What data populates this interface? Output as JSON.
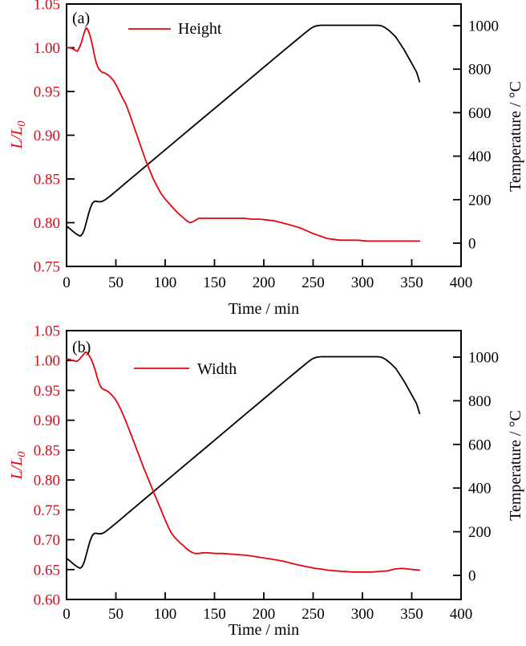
{
  "figure": {
    "background": "#ffffff",
    "colors": {
      "red": "#e30613",
      "black": "#000000"
    }
  },
  "chart_data": [
    {
      "type": "line",
      "panel_label": "(a)",
      "xlabel": "Time / min",
      "ylabel_left": {
        "main": "L/L",
        "sub": "0"
      },
      "ylabel_right": "Temperature / °C",
      "legend": {
        "label": "Height",
        "line_color": "#e30613"
      },
      "xlim": [
        0,
        400
      ],
      "xticks": {
        "values": [
          0,
          50,
          100,
          150,
          200,
          250,
          300,
          350,
          400
        ],
        "labels": [
          "0",
          "50",
          "100",
          "150",
          "200",
          "250",
          "300",
          "350",
          "400"
        ]
      },
      "ylim_left": [
        0.75,
        1.05
      ],
      "yticks_left": {
        "values": [
          0.75,
          0.8,
          0.85,
          0.9,
          0.95,
          1.0,
          1.05
        ],
        "labels": [
          "0.75",
          "0.80",
          "0.85",
          "0.90",
          "0.95",
          "1.00",
          "1.05"
        ]
      },
      "ylim_right": [
        0,
        1000
      ],
      "yticks_right": {
        "values": [
          0,
          200,
          400,
          600,
          800,
          1000
        ],
        "labels": [
          "0",
          "200",
          "400",
          "600",
          "800",
          "1000"
        ]
      },
      "grid": false,
      "legend_position": "top-inside",
      "series": [
        {
          "name": "Temperature",
          "axis": "right",
          "color": "#000000",
          "points": [
            [
              0,
              78
            ],
            [
              3,
              68
            ],
            [
              6,
              56
            ],
            [
              9,
              45
            ],
            [
              12,
              36
            ],
            [
              14,
              33
            ],
            [
              16,
              42
            ],
            [
              18,
              62
            ],
            [
              20,
              95
            ],
            [
              22,
              130
            ],
            [
              24,
              160
            ],
            [
              26,
              182
            ],
            [
              28,
              192
            ],
            [
              30,
              193
            ],
            [
              33,
              190
            ],
            [
              36,
              192
            ],
            [
              39,
              199
            ],
            [
              44,
              216
            ],
            [
              52,
              246
            ],
            [
              60,
              277
            ],
            [
              80,
              353
            ],
            [
              100,
              429
            ],
            [
              120,
              505
            ],
            [
              140,
              581
            ],
            [
              160,
              657
            ],
            [
              180,
              733
            ],
            [
              200,
              809
            ],
            [
              220,
              885
            ],
            [
              232,
              930
            ],
            [
              240,
              960
            ],
            [
              246,
              982
            ],
            [
              250,
              994
            ],
            [
              254,
              1000
            ],
            [
              258,
              1002
            ],
            [
              315,
              1002
            ],
            [
              319,
              1000
            ],
            [
              323,
              991
            ],
            [
              328,
              974
            ],
            [
              334,
              947
            ],
            [
              342,
              891
            ],
            [
              350,
              827
            ],
            [
              355,
              786
            ],
            [
              358,
              742
            ]
          ]
        },
        {
          "name": "Height",
          "axis": "left",
          "color": "#e30613",
          "points": [
            [
              0,
              1.0
            ],
            [
              3,
              1.0
            ],
            [
              6,
              0.999
            ],
            [
              9,
              0.997
            ],
            [
              11,
              0.996
            ],
            [
              13,
              1.0
            ],
            [
              15,
              1.006
            ],
            [
              17,
              1.014
            ],
            [
              19,
              1.021
            ],
            [
              20,
              1.023
            ],
            [
              22,
              1.02
            ],
            [
              24,
              1.013
            ],
            [
              26,
              1.004
            ],
            [
              28,
              0.993
            ],
            [
              30,
              0.983
            ],
            [
              32,
              0.977
            ],
            [
              34,
              0.974
            ],
            [
              36,
              0.972
            ],
            [
              39,
              0.971
            ],
            [
              42,
              0.969
            ],
            [
              45,
              0.966
            ],
            [
              48,
              0.962
            ],
            [
              51,
              0.956
            ],
            [
              54,
              0.949
            ],
            [
              57,
              0.942
            ],
            [
              60,
              0.936
            ],
            [
              64,
              0.924
            ],
            [
              68,
              0.911
            ],
            [
              72,
              0.898
            ],
            [
              76,
              0.885
            ],
            [
              80,
              0.872
            ],
            [
              84,
              0.861
            ],
            [
              88,
              0.85
            ],
            [
              92,
              0.841
            ],
            [
              96,
              0.833
            ],
            [
              100,
              0.827
            ],
            [
              104,
              0.822
            ],
            [
              108,
              0.817
            ],
            [
              112,
              0.812
            ],
            [
              116,
              0.808
            ],
            [
              119,
              0.805
            ],
            [
              122,
              0.802
            ],
            [
              125,
              0.8
            ],
            [
              128,
              0.801
            ],
            [
              131,
              0.803
            ],
            [
              134,
              0.805
            ],
            [
              140,
              0.805
            ],
            [
              148,
              0.805
            ],
            [
              156,
              0.805
            ],
            [
              164,
              0.805
            ],
            [
              172,
              0.805
            ],
            [
              180,
              0.805
            ],
            [
              188,
              0.804
            ],
            [
              196,
              0.804
            ],
            [
              204,
              0.803
            ],
            [
              211,
              0.802
            ],
            [
              218,
              0.8
            ],
            [
              225,
              0.798
            ],
            [
              231,
              0.796
            ],
            [
              237,
              0.794
            ],
            [
              243,
              0.791
            ],
            [
              249,
              0.788
            ],
            [
              254,
              0.786
            ],
            [
              259,
              0.784
            ],
            [
              264,
              0.782
            ],
            [
              270,
              0.781
            ],
            [
              277,
              0.78
            ],
            [
              285,
              0.78
            ],
            [
              295,
              0.78
            ],
            [
              305,
              0.779
            ],
            [
              320,
              0.779
            ],
            [
              335,
              0.779
            ],
            [
              348,
              0.779
            ],
            [
              358,
              0.779
            ]
          ]
        }
      ]
    },
    {
      "type": "line",
      "panel_label": "(b)",
      "xlabel": "Time / min",
      "ylabel_left": {
        "main": "L/L",
        "sub": "0"
      },
      "ylabel_right": "Temperature / °C",
      "legend": {
        "label": "Width",
        "line_color": "#e30613"
      },
      "xlim": [
        0,
        400
      ],
      "xticks": {
        "values": [
          0,
          50,
          100,
          150,
          200,
          250,
          300,
          350,
          400
        ],
        "labels": [
          "0",
          "50",
          "100",
          "150",
          "200",
          "250",
          "300",
          "350",
          "400"
        ]
      },
      "ylim_left": [
        0.6,
        1.05
      ],
      "yticks_left": {
        "values": [
          0.6,
          0.65,
          0.7,
          0.75,
          0.8,
          0.85,
          0.9,
          0.95,
          1.0,
          1.05
        ],
        "labels": [
          "0.60",
          "0.65",
          "0.70",
          "0.75",
          "0.80",
          "0.85",
          "0.90",
          "0.95",
          "1.00",
          "1.05"
        ]
      },
      "ylim_right": [
        0,
        1000
      ],
      "yticks_right": {
        "values": [
          0,
          200,
          400,
          600,
          800,
          1000
        ],
        "labels": [
          "0",
          "200",
          "400",
          "600",
          "800",
          "1000"
        ]
      },
      "grid": false,
      "legend_position": "top-inside",
      "series": [
        {
          "name": "Temperature",
          "axis": "right",
          "color": "#000000",
          "points": [
            [
              0,
              78
            ],
            [
              3,
              68
            ],
            [
              6,
              56
            ],
            [
              9,
              45
            ],
            [
              12,
              36
            ],
            [
              14,
              33
            ],
            [
              16,
              42
            ],
            [
              18,
              62
            ],
            [
              20,
              95
            ],
            [
              22,
              130
            ],
            [
              24,
              160
            ],
            [
              26,
              182
            ],
            [
              28,
              192
            ],
            [
              30,
              193
            ],
            [
              33,
              190
            ],
            [
              36,
              192
            ],
            [
              39,
              199
            ],
            [
              44,
              216
            ],
            [
              52,
              246
            ],
            [
              60,
              277
            ],
            [
              80,
              353
            ],
            [
              100,
              429
            ],
            [
              120,
              505
            ],
            [
              140,
              581
            ],
            [
              160,
              657
            ],
            [
              180,
              733
            ],
            [
              200,
              809
            ],
            [
              220,
              885
            ],
            [
              232,
              930
            ],
            [
              240,
              960
            ],
            [
              246,
              982
            ],
            [
              250,
              994
            ],
            [
              254,
              1000
            ],
            [
              258,
              1002
            ],
            [
              315,
              1002
            ],
            [
              319,
              1000
            ],
            [
              323,
              991
            ],
            [
              328,
              974
            ],
            [
              334,
              947
            ],
            [
              342,
              891
            ],
            [
              350,
              827
            ],
            [
              355,
              786
            ],
            [
              358,
              742
            ]
          ]
        },
        {
          "name": "Width",
          "axis": "left",
          "color": "#e30613",
          "points": [
            [
              0,
              1.002
            ],
            [
              3,
              1.002
            ],
            [
              6,
              1.0
            ],
            [
              9,
              0.999
            ],
            [
              11,
              0.999
            ],
            [
              13,
              1.002
            ],
            [
              15,
              1.006
            ],
            [
              17,
              1.01
            ],
            [
              19,
              1.014
            ],
            [
              21,
              1.013
            ],
            [
              23,
              1.008
            ],
            [
              25,
              1.002
            ],
            [
              27,
              0.994
            ],
            [
              29,
              0.984
            ],
            [
              31,
              0.972
            ],
            [
              33,
              0.962
            ],
            [
              35,
              0.955
            ],
            [
              37,
              0.952
            ],
            [
              40,
              0.95
            ],
            [
              43,
              0.947
            ],
            [
              46,
              0.942
            ],
            [
              49,
              0.936
            ],
            [
              52,
              0.928
            ],
            [
              55,
              0.918
            ],
            [
              58,
              0.907
            ],
            [
              61,
              0.895
            ],
            [
              64,
              0.882
            ],
            [
              67,
              0.869
            ],
            [
              70,
              0.856
            ],
            [
              73,
              0.843
            ],
            [
              76,
              0.83
            ],
            [
              79,
              0.817
            ],
            [
              82,
              0.805
            ],
            [
              85,
              0.793
            ],
            [
              88,
              0.781
            ],
            [
              91,
              0.769
            ],
            [
              94,
              0.757
            ],
            [
              97,
              0.745
            ],
            [
              100,
              0.733
            ],
            [
              103,
              0.722
            ],
            [
              106,
              0.712
            ],
            [
              109,
              0.705
            ],
            [
              112,
              0.7
            ],
            [
              115,
              0.695
            ],
            [
              118,
              0.691
            ],
            [
              121,
              0.686
            ],
            [
              124,
              0.682
            ],
            [
              127,
              0.679
            ],
            [
              130,
              0.677
            ],
            [
              134,
              0.677
            ],
            [
              138,
              0.678
            ],
            [
              144,
              0.678
            ],
            [
              151,
              0.677
            ],
            [
              158,
              0.677
            ],
            [
              166,
              0.676
            ],
            [
              174,
              0.675
            ],
            [
              182,
              0.674
            ],
            [
              190,
              0.672
            ],
            [
              198,
              0.67
            ],
            [
              206,
              0.668
            ],
            [
              213,
              0.666
            ],
            [
              220,
              0.664
            ],
            [
              227,
              0.661
            ],
            [
              234,
              0.658
            ],
            [
              240,
              0.656
            ],
            [
              246,
              0.654
            ],
            [
              252,
              0.652
            ],
            [
              258,
              0.651
            ],
            [
              265,
              0.649
            ],
            [
              272,
              0.648
            ],
            [
              280,
              0.647
            ],
            [
              290,
              0.646
            ],
            [
              300,
              0.646
            ],
            [
              310,
              0.646
            ],
            [
              318,
              0.647
            ],
            [
              326,
              0.648
            ],
            [
              333,
              0.651
            ],
            [
              340,
              0.652
            ],
            [
              346,
              0.651
            ],
            [
              352,
              0.65
            ],
            [
              358,
              0.649
            ]
          ]
        }
      ]
    }
  ]
}
